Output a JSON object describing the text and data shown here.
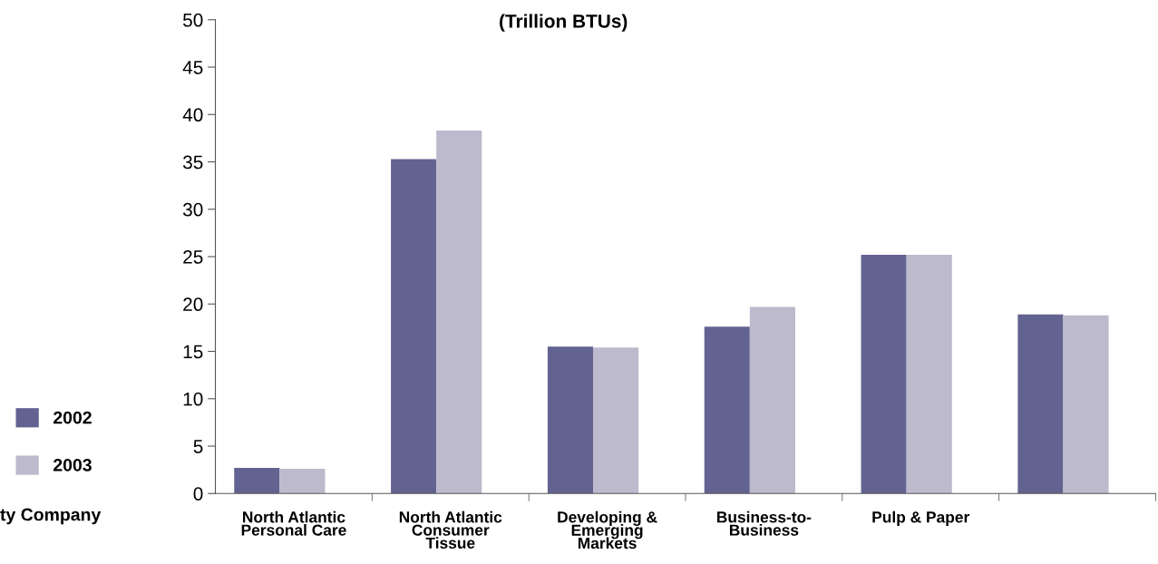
{
  "chart_data": {
    "type": "bar",
    "title": "(Trillion BTUs)",
    "categories": [
      "North Atlantic\nPersonal Care",
      "North Atlantic\nConsumer\nTissue",
      "Developing &\nEmerging\nMarkets",
      "Business-to-\nBusiness",
      "Pulp & Paper",
      null
    ],
    "series": [
      {
        "name": "2002",
        "color": "#636391",
        "values": [
          2.7,
          35.3,
          15.5,
          17.6,
          25.2,
          18.9
        ]
      },
      {
        "name": "2003",
        "color": "#bcbacc",
        "values": [
          2.6,
          38.3,
          15.4,
          19.7,
          25.2,
          18.8
        ]
      }
    ],
    "ylim": [
      0,
      50
    ],
    "yticks": [
      0,
      5,
      10,
      15,
      20,
      25,
      30,
      35,
      40,
      45,
      50
    ],
    "grid": false,
    "legend": "left",
    "annotations": [
      "ty Company"
    ]
  }
}
